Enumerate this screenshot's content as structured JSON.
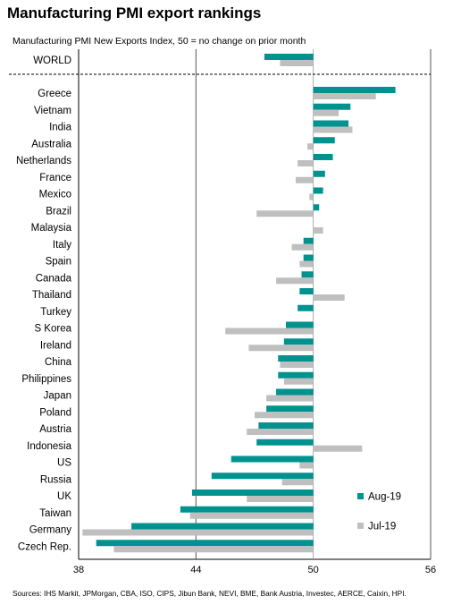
{
  "title": "Manufacturing PMI export rankings",
  "subtitle": "Manufacturing PMI New Exports Index, 50 = no change on prior month",
  "source": "Sources: IHS Markit, JPMorgan, CBA, ISO, CIPS, Jibun Bank, NEVI, BME, Bank Austria, Investec, AERCE, Caixin, HPI.",
  "chart_data": {
    "type": "bar",
    "orientation": "horizontal",
    "baseline": 50,
    "xlim": [
      38,
      56
    ],
    "xticks": [
      "38",
      "44",
      "50",
      "56"
    ],
    "grid": "vertical dashed-free lines at 44 and 56; dotted separator below WORLD",
    "legend_position": "bottom-right",
    "categories": [
      "WORLD",
      "Greece",
      "Vietnam",
      "India",
      "Australia",
      "Netherlands",
      "France",
      "Mexico",
      "Brazil",
      "Malaysia",
      "Italy",
      "Spain",
      "Canada",
      "Thailand",
      "Turkey",
      "S Korea",
      "Ireland",
      "China",
      "Philippines",
      "Japan",
      "Poland",
      "Austria",
      "Indonesia",
      "US",
      "Russia",
      "UK",
      "Taiwan",
      "Germany",
      "Czech Rep."
    ],
    "series": [
      {
        "name": "Aug-19",
        "color": "#00928f",
        "values": [
          47.5,
          54.2,
          51.9,
          51.8,
          51.1,
          51.0,
          50.6,
          50.5,
          50.3,
          null,
          49.5,
          49.5,
          49.4,
          49.3,
          49.2,
          48.6,
          48.5,
          48.2,
          48.2,
          48.1,
          47.6,
          47.2,
          47.1,
          45.8,
          44.8,
          43.8,
          43.2,
          40.7,
          38.9
        ]
      },
      {
        "name": "Jul-19",
        "color": "#bfbfbf",
        "values": [
          48.3,
          53.2,
          51.3,
          52.0,
          49.7,
          49.2,
          49.1,
          49.8,
          47.1,
          50.5,
          48.9,
          49.3,
          48.1,
          51.6,
          null,
          45.5,
          46.7,
          48.3,
          48.5,
          47.6,
          47.0,
          46.6,
          52.5,
          49.3,
          48.4,
          46.6,
          43.7,
          38.2,
          39.8
        ]
      }
    ]
  }
}
